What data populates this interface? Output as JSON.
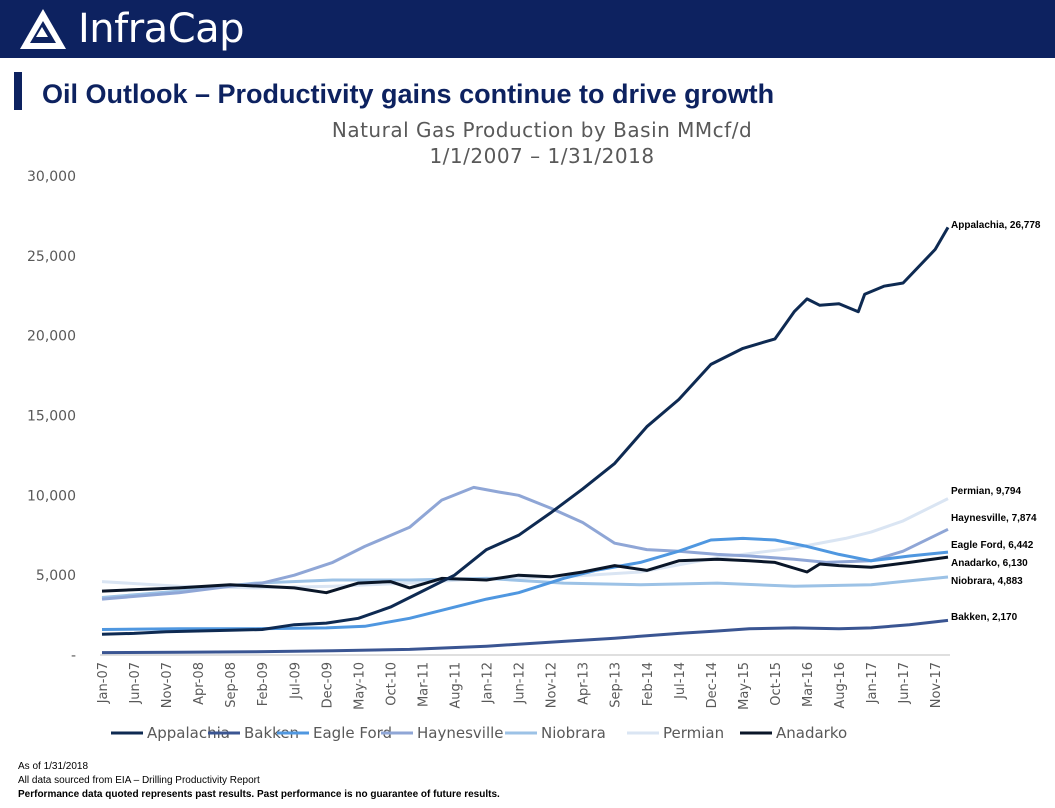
{
  "header": {
    "brand": "InfraCap",
    "bg_color": "#0d2260"
  },
  "page_title": "Oil Outlook – Productivity gains continue to drive growth",
  "footnotes": {
    "as_of": "As of 1/31/2018",
    "source": "All data sourced from EIA – Drilling Productivity Report",
    "disclaimer": "Performance data quoted represents past results. Past performance is no guarantee of future results."
  },
  "chart_data": {
    "type": "line",
    "title": "Natural Gas Production by Basin MMcf/d",
    "subtitle": "1/1/2007 – 1/31/2018",
    "x_ticks": [
      "Jan-07",
      "Jun-07",
      "Nov-07",
      "Apr-08",
      "Sep-08",
      "Feb-09",
      "Jul-09",
      "Dec-09",
      "May-10",
      "Oct-10",
      "Mar-11",
      "Aug-11",
      "Jan-12",
      "Jun-12",
      "Nov-12",
      "Apr-13",
      "Sep-13",
      "Feb-14",
      "Jul-14",
      "Dec-14",
      "May-15",
      "Oct-15",
      "Mar-16",
      "Aug-16",
      "Jan-17",
      "Jun-17",
      "Nov-17"
    ],
    "y_ticks": [
      "-",
      "5,000",
      "10,000",
      "15,000",
      "20,000",
      "25,000",
      "30,000"
    ],
    "ylim": [
      0,
      30000
    ],
    "legend_position": "bottom",
    "grid": false,
    "series": [
      {
        "name": "Appalachia",
        "color": "#0e2a52",
        "end_label": "Appalachia, 26,778",
        "points": [
          [
            "2007-01",
            1300
          ],
          [
            "2007-06",
            1350
          ],
          [
            "2007-11",
            1450
          ],
          [
            "2008-04",
            1500
          ],
          [
            "2008-09",
            1550
          ],
          [
            "2009-02",
            1600
          ],
          [
            "2009-07",
            1900
          ],
          [
            "2009-12",
            2000
          ],
          [
            "2010-05",
            2300
          ],
          [
            "2010-10",
            3000
          ],
          [
            "2011-03",
            4000
          ],
          [
            "2011-08",
            5000
          ],
          [
            "2012-01",
            6600
          ],
          [
            "2012-06",
            7500
          ],
          [
            "2012-11",
            8900
          ],
          [
            "2013-04",
            10400
          ],
          [
            "2013-09",
            12000
          ],
          [
            "2014-02",
            14300
          ],
          [
            "2014-07",
            16000
          ],
          [
            "2014-12",
            18200
          ],
          [
            "2015-05",
            19200
          ],
          [
            "2015-10",
            19800
          ],
          [
            "2016-01",
            21500
          ],
          [
            "2016-03",
            22300
          ],
          [
            "2016-05",
            21900
          ],
          [
            "2016-08",
            22000
          ],
          [
            "2016-11",
            21500
          ],
          [
            "2016-12",
            22600
          ],
          [
            "2017-03",
            23100
          ],
          [
            "2017-06",
            23300
          ],
          [
            "2017-11",
            25400
          ],
          [
            "2018-01",
            26778
          ]
        ]
      },
      {
        "name": "Bakken",
        "color": "#3a5592",
        "end_label": "Bakken, 2,170",
        "points": [
          [
            "2007-01",
            150
          ],
          [
            "2008-01",
            170
          ],
          [
            "2009-01",
            200
          ],
          [
            "2010-01",
            260
          ],
          [
            "2011-01",
            350
          ],
          [
            "2012-01",
            550
          ],
          [
            "2013-01",
            850
          ],
          [
            "2013-09",
            1050
          ],
          [
            "2014-07",
            1350
          ],
          [
            "2015-01",
            1500
          ],
          [
            "2015-06",
            1650
          ],
          [
            "2016-01",
            1700
          ],
          [
            "2016-08",
            1650
          ],
          [
            "2017-01",
            1700
          ],
          [
            "2017-07",
            1900
          ],
          [
            "2018-01",
            2170
          ]
        ]
      },
      {
        "name": "Eagle Ford",
        "color": "#4f97e0",
        "end_label": "Eagle Ford, 6,442",
        "points": [
          [
            "2007-01",
            1600
          ],
          [
            "2008-01",
            1650
          ],
          [
            "2009-01",
            1650
          ],
          [
            "2009-12",
            1700
          ],
          [
            "2010-06",
            1800
          ],
          [
            "2011-01",
            2300
          ],
          [
            "2011-06",
            2800
          ],
          [
            "2012-01",
            3500
          ],
          [
            "2012-06",
            3900
          ],
          [
            "2013-01",
            4800
          ],
          [
            "2013-06",
            5300
          ],
          [
            "2014-01",
            5800
          ],
          [
            "2014-07",
            6500
          ],
          [
            "2014-12",
            7200
          ],
          [
            "2015-05",
            7300
          ],
          [
            "2015-10",
            7200
          ],
          [
            "2016-03",
            6800
          ],
          [
            "2016-08",
            6300
          ],
          [
            "2017-01",
            5900
          ],
          [
            "2017-07",
            6200
          ],
          [
            "2018-01",
            6442
          ]
        ]
      },
      {
        "name": "Haynesville",
        "color": "#8fa6d6",
        "end_label": "Haynesville, 7,874",
        "points": [
          [
            "2007-01",
            3500
          ],
          [
            "2008-01",
            3900
          ],
          [
            "2008-09",
            4300
          ],
          [
            "2009-02",
            4500
          ],
          [
            "2009-07",
            5000
          ],
          [
            "2010-01",
            5800
          ],
          [
            "2010-06",
            6800
          ],
          [
            "2011-01",
            8000
          ],
          [
            "2011-06",
            9700
          ],
          [
            "2011-11",
            10500
          ],
          [
            "2012-03",
            10200
          ],
          [
            "2012-06",
            10000
          ],
          [
            "2012-11",
            9200
          ],
          [
            "2013-04",
            8300
          ],
          [
            "2013-09",
            7000
          ],
          [
            "2014-02",
            6600
          ],
          [
            "2014-07",
            6500
          ],
          [
            "2015-01",
            6300
          ],
          [
            "2015-06",
            6200
          ],
          [
            "2016-01",
            6000
          ],
          [
            "2016-06",
            5800
          ],
          [
            "2017-01",
            5900
          ],
          [
            "2017-06",
            6500
          ],
          [
            "2018-01",
            7874
          ]
        ]
      },
      {
        "name": "Niobrara",
        "color": "#9cc2e6",
        "end_label": "Niobrara, 4,883",
        "points": [
          [
            "2007-01",
            3600
          ],
          [
            "2008-01",
            4000
          ],
          [
            "2009-01",
            4500
          ],
          [
            "2010-01",
            4700
          ],
          [
            "2011-01",
            4700
          ],
          [
            "2012-01",
            4800
          ],
          [
            "2013-01",
            4500
          ],
          [
            "2014-01",
            4400
          ],
          [
            "2015-01",
            4500
          ],
          [
            "2016-01",
            4300
          ],
          [
            "2017-01",
            4400
          ],
          [
            "2018-01",
            4883
          ]
        ]
      },
      {
        "name": "Permian",
        "color": "#dae5f3",
        "end_label": "Permian, 9,794",
        "points": [
          [
            "2007-01",
            4600
          ],
          [
            "2008-01",
            4300
          ],
          [
            "2009-01",
            4200
          ],
          [
            "2010-01",
            4300
          ],
          [
            "2011-01",
            4500
          ],
          [
            "2012-01",
            4800
          ],
          [
            "2013-01",
            4900
          ],
          [
            "2014-01",
            5200
          ],
          [
            "2015-01",
            6100
          ],
          [
            "2016-01",
            6700
          ],
          [
            "2016-09",
            7300
          ],
          [
            "2017-01",
            7700
          ],
          [
            "2017-06",
            8400
          ],
          [
            "2018-01",
            9794
          ]
        ]
      },
      {
        "name": "Anadarko",
        "color": "#0a1628",
        "end_label": "Anadarko, 6,130",
        "points": [
          [
            "2007-01",
            4000
          ],
          [
            "2008-01",
            4200
          ],
          [
            "2008-09",
            4400
          ],
          [
            "2009-02",
            4300
          ],
          [
            "2009-07",
            4200
          ],
          [
            "2009-12",
            3900
          ],
          [
            "2010-05",
            4500
          ],
          [
            "2010-10",
            4600
          ],
          [
            "2011-01",
            4200
          ],
          [
            "2011-06",
            4800
          ],
          [
            "2012-01",
            4700
          ],
          [
            "2012-06",
            5000
          ],
          [
            "2012-11",
            4900
          ],
          [
            "2013-04",
            5200
          ],
          [
            "2013-09",
            5600
          ],
          [
            "2014-02",
            5300
          ],
          [
            "2014-07",
            5900
          ],
          [
            "2015-01",
            6000
          ],
          [
            "2015-06",
            5900
          ],
          [
            "2015-10",
            5800
          ],
          [
            "2016-03",
            5200
          ],
          [
            "2016-05",
            5700
          ],
          [
            "2016-08",
            5600
          ],
          [
            "2017-01",
            5500
          ],
          [
            "2017-07",
            5800
          ],
          [
            "2018-01",
            6130
          ]
        ]
      }
    ]
  }
}
